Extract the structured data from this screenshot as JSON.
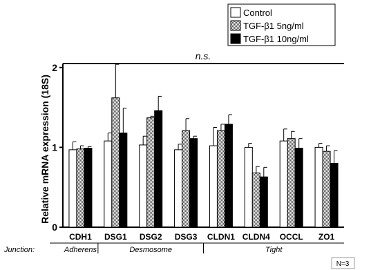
{
  "chart_data": {
    "type": "bar",
    "title": "",
    "xlabel": "",
    "ylabel": "Relative mRNA expression (18S)",
    "ylim": [
      0,
      2.05
    ],
    "yticks": [
      "0",
      "1",
      "2"
    ],
    "grid": false,
    "legend_position": "top-right",
    "categories": [
      "CDH1",
      "DSG1",
      "DSG2",
      "DSG3",
      "CLDN1",
      "CLDN4",
      "OCCL",
      "ZO1"
    ],
    "series": [
      {
        "name": "Control",
        "color": "#ffffff",
        "pattern": "none",
        "values": [
          0.97,
          1.08,
          1.03,
          0.97,
          1.02,
          1.0,
          1.08,
          1.0
        ],
        "errors": [
          0.1,
          0.1,
          0.11,
          0.07,
          0.23,
          0.05,
          0.15,
          0.05
        ]
      },
      {
        "name": "TGF-β1 5ng/ml",
        "color": "#b0b0b0",
        "pattern": "dotted",
        "values": [
          0.98,
          1.62,
          1.37,
          1.21,
          1.21,
          0.68,
          1.11,
          0.95
        ],
        "errors": [
          0.04,
          0.42,
          0.02,
          0.15,
          0.08,
          0.08,
          0.09,
          0.07
        ]
      },
      {
        "name": "TGF-β1 10ng/ml",
        "color": "#000000",
        "pattern": "none",
        "values": [
          0.99,
          1.18,
          1.46,
          1.11,
          1.29,
          0.63,
          0.99,
          0.8
        ],
        "errors": [
          0.02,
          0.31,
          0.18,
          0.03,
          0.12,
          0.12,
          0.12,
          0.16
        ]
      }
    ],
    "significance": "n.s.",
    "junction_label": "Junction:",
    "junction_groups": [
      {
        "label": "Adherens",
        "categories": [
          "CDH1"
        ]
      },
      {
        "label": "Desmosome",
        "categories": [
          "DSG1",
          "DSG2",
          "DSG3"
        ]
      },
      {
        "label": "Tight",
        "categories": [
          "CLDN1",
          "CLDN4",
          "OCCL",
          "ZO1"
        ]
      }
    ],
    "note": "N=3"
  }
}
